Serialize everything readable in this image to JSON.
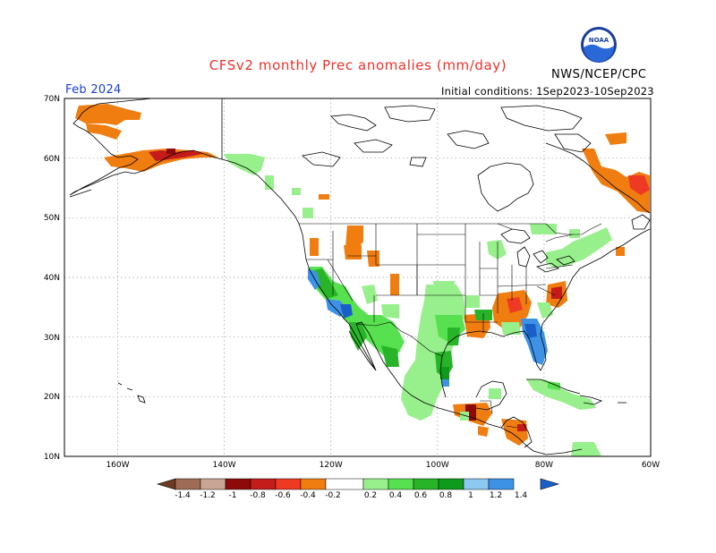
{
  "header": {
    "title": "CFSv2 monthly Prec anomalies (mm/day)",
    "agency": "NWS/NCEP/CPC",
    "valid_month": "Feb 2024",
    "initial_conditions": "Initial conditions: 1Sep2023-10Sep2023",
    "logo_text": "NOAA"
  },
  "map": {
    "lat_labels": [
      "70N",
      "60N",
      "50N",
      "40N",
      "30N",
      "20N",
      "10N"
    ],
    "lon_labels": [
      "160W",
      "140W",
      "120W",
      "100W",
      "80W",
      "60W"
    ],
    "lat_range": [
      10,
      70
    ],
    "lon_range": [
      -170,
      -60
    ],
    "grid": "dotted"
  },
  "colorbar": {
    "labels": [
      "-1.4",
      "-1.2",
      "-1",
      "-0.8",
      "-0.6",
      "-0.4",
      "-0.2",
      "0.2",
      "0.4",
      "0.6",
      "0.8",
      "1",
      "1.2",
      "1.4"
    ],
    "colors": [
      "#6b3b22",
      "#9e6b55",
      "#c8a594",
      "#8c0a0a",
      "#c41b1b",
      "#ee3a22",
      "#f07d10",
      "#ffffff",
      "#98f08c",
      "#57e050",
      "#28b428",
      "#0e9a1a",
      "#8cc8f0",
      "#3e92e6",
      "#1a5fc8"
    ]
  },
  "anomaly_regions": [
    {
      "name": "alaska-north",
      "sign": "dry",
      "level": -0.3
    },
    {
      "name": "alaska-south",
      "sign": "dry",
      "level": -0.7
    },
    {
      "name": "pacific-northwest-coast",
      "sign": "wet",
      "level": 0.3
    },
    {
      "name": "california",
      "sign": "wet",
      "level": 0.7
    },
    {
      "name": "southern-california-coast",
      "sign": "wet",
      "level": 1.3
    },
    {
      "name": "mexico",
      "sign": "wet",
      "level": 0.5
    },
    {
      "name": "southern-plains",
      "sign": "wet",
      "level": 0.4
    },
    {
      "name": "tennessee-valley",
      "sign": "dry",
      "level": -0.5
    },
    {
      "name": "mid-atlantic",
      "sign": "dry",
      "level": -0.7
    },
    {
      "name": "florida",
      "sign": "wet",
      "level": 1.3
    },
    {
      "name": "central-america",
      "sign": "dry",
      "level": -0.7
    },
    {
      "name": "eastern-canada",
      "sign": "dry",
      "level": -0.6
    },
    {
      "name": "great-lakes",
      "sign": "wet",
      "level": 0.3
    },
    {
      "name": "caribbean",
      "sign": "wet",
      "level": 0.4
    }
  ]
}
